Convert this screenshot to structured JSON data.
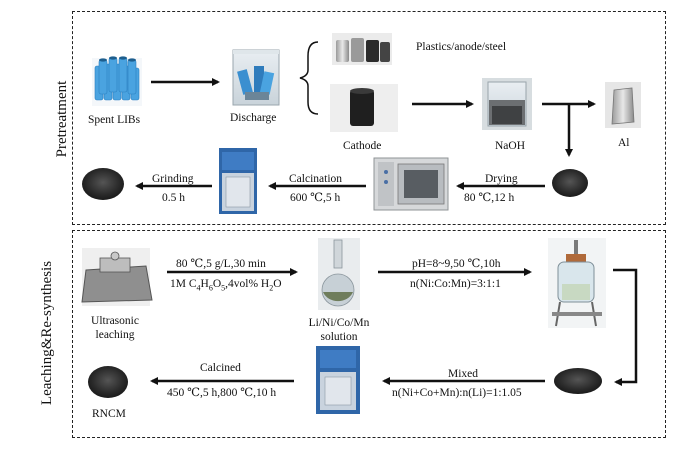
{
  "sections": {
    "pretreatment": "Pretreatment",
    "leaching": "Leaching&Re-synthesis"
  },
  "labels": {
    "spent_libs": "Spent LIBs",
    "discharge": "Discharge",
    "plastics": "Plastics/anode/steel",
    "cathode": "Cathode",
    "naoh": "NaOH",
    "al": "Al",
    "grinding": "Grinding",
    "grinding_time": "0.5 h",
    "calcination": "Calcination",
    "calcination_cond": "600 ℃,5 h",
    "drying": "Drying",
    "drying_cond": "80 ℃,12 h",
    "ultrasonic_1": "Ultrasonic",
    "ultrasonic_2": "leaching",
    "leach_cond_1": "80 ℃,5 g/L,30 min",
    "solution_1": "Li/Ni/Co/Mn",
    "solution_2": "solution",
    "ph_cond": "pH=8~9,50 ℃,10h",
    "ratio_1": "n(Ni:Co:Mn)=3:1:1",
    "mixed": "Mixed",
    "ratio_2": "n(Ni+Co+Mn):n(Li)=1:1.05",
    "calcined": "Calcined",
    "calcined_cond": "450 ℃,5 h,800 ℃,10 h",
    "rncm": "RNCM"
  },
  "leach_reagent": {
    "a": "1M C",
    "s1": "4",
    "b": "H",
    "s2": "6",
    "c": "O",
    "s3": "5",
    "d": ",4vol% H",
    "s4": "2",
    "e": "O"
  }
}
